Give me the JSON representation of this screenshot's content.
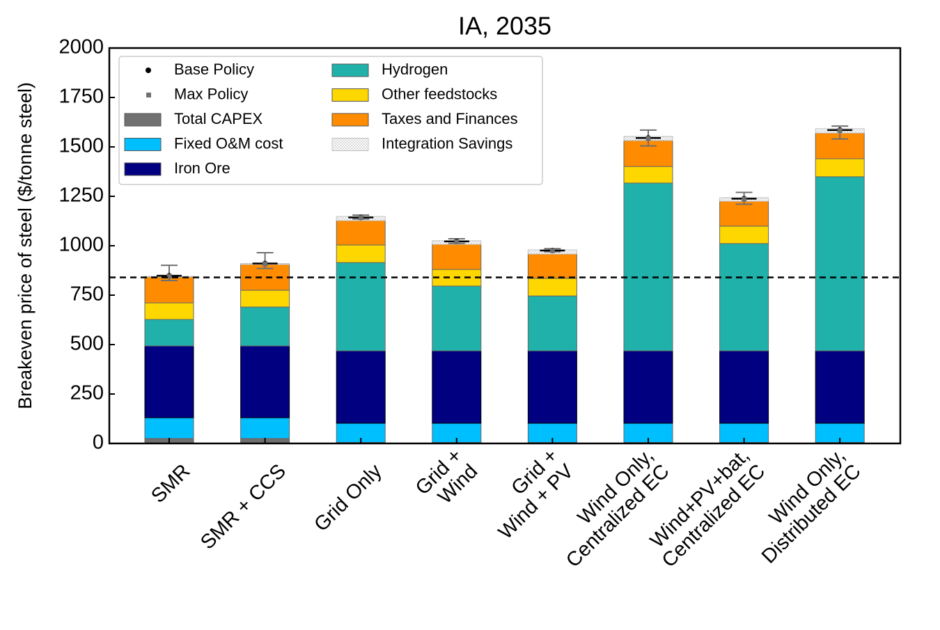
{
  "chart_data": {
    "type": "stacked_bar",
    "title": "IA, 2035",
    "y_label": "Breakeven price of steel ($/tonne steel)",
    "categories": [
      "SMR",
      "SMR + CCS",
      "Grid Only",
      "Grid +\nWind",
      "Grid +\nWind + PV",
      "Wind Only,\nCentralized EC",
      "Wind+PV+bat,\nCentralized EC",
      "Wind Only,\nDistributed EC"
    ],
    "ylim": [
      0,
      2000
    ],
    "yticks": [
      0,
      250,
      500,
      750,
      1000,
      1250,
      1500,
      1750,
      2000
    ],
    "series": [
      {
        "name": "Total CAPEX",
        "color": "#707070",
        "values": [
          25,
          25,
          5,
          5,
          5,
          5,
          5,
          5
        ]
      },
      {
        "name": "Fixed O&M cost",
        "color": "#00bfff",
        "values": [
          105,
          105,
          97,
          97,
          97,
          97,
          97,
          97
        ]
      },
      {
        "name": "Iron Ore",
        "color": "#000080",
        "values": [
          363,
          363,
          366,
          366,
          366,
          366,
          366,
          366
        ]
      },
      {
        "name": "Hydrogen",
        "color": "#20b2aa",
        "values": [
          134,
          197,
          447,
          328,
          278,
          849,
          543,
          881
        ]
      },
      {
        "name": "Other feedstocks",
        "color": "#ffd700",
        "values": [
          84,
          85,
          89,
          84,
          89,
          84,
          88,
          91
        ]
      },
      {
        "name": "Taxes and Finances",
        "color": "#ff8c00",
        "values": [
          131,
          130,
          123,
          127,
          123,
          131,
          126,
          130
        ]
      },
      {
        "name": "Integration Savings",
        "color": "#c0c0c0",
        "hatch": true,
        "values": [
          3,
          5,
          21,
          18,
          21,
          21,
          18,
          22
        ]
      }
    ],
    "points": [
      {
        "name": "Base Policy",
        "color": "#000000",
        "marker": "circle",
        "values": [
          848,
          910,
          1143,
          1022,
          976,
          1545,
          1238,
          1585
        ]
      },
      {
        "name": "Max Policy",
        "color": "#707070",
        "marker": "square",
        "values": [
          846,
          908,
          1142,
          1020,
          975,
          1543,
          1236,
          1583
        ]
      }
    ],
    "range_low": [
      824,
      885,
      1135,
      1012,
      970,
      1505,
      1210,
      1540
    ],
    "range_high": [
      901,
      965,
      1155,
      1035,
      985,
      1585,
      1270,
      1605
    ],
    "reference_line": 840,
    "legend": "upper left"
  }
}
